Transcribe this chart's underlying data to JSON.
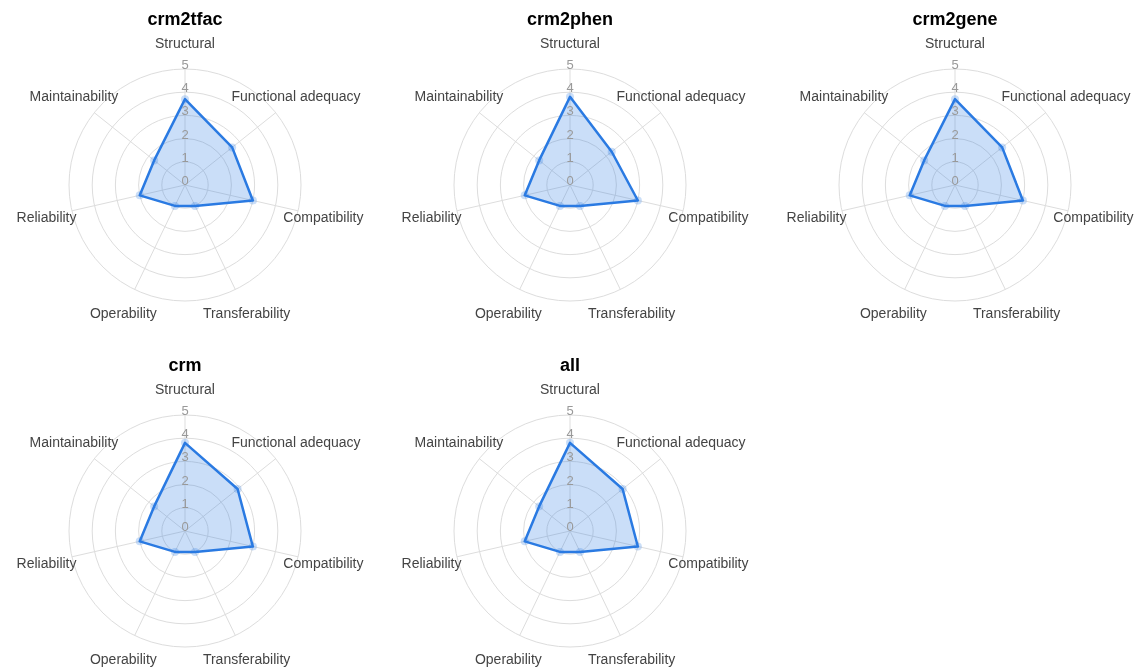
{
  "chart_data": [
    {
      "type": "radar",
      "title": "crm2tfac",
      "categories": [
        "Structural",
        "Functional adequacy",
        "Compatibility",
        "Transferability",
        "Operability",
        "Reliability",
        "Maintainability"
      ],
      "series": [
        {
          "color": "#2a7ae2",
          "values": [
            3.7,
            2.6,
            3.0,
            1.0,
            1.0,
            2.0,
            1.7
          ]
        }
      ],
      "ylim": [
        0,
        5
      ],
      "yticks": [
        0,
        1,
        2,
        3,
        4,
        5
      ],
      "grid": true,
      "marker": "circle",
      "legend": false
    },
    {
      "type": "radar",
      "title": "crm2phen",
      "categories": [
        "Structural",
        "Functional adequacy",
        "Compatibility",
        "Transferability",
        "Operability",
        "Reliability",
        "Maintainability"
      ],
      "series": [
        {
          "color": "#2a7ae2",
          "values": [
            3.8,
            2.3,
            3.0,
            1.0,
            1.0,
            2.0,
            1.7
          ]
        }
      ],
      "ylim": [
        0,
        5
      ],
      "yticks": [
        0,
        1,
        2,
        3,
        4,
        5
      ],
      "grid": true,
      "marker": "circle",
      "legend": false
    },
    {
      "type": "radar",
      "title": "crm2gene",
      "categories": [
        "Structural",
        "Functional adequacy",
        "Compatibility",
        "Transferability",
        "Operability",
        "Reliability",
        "Maintainability"
      ],
      "series": [
        {
          "color": "#2a7ae2",
          "values": [
            3.7,
            2.6,
            3.0,
            1.0,
            1.0,
            2.0,
            1.7
          ]
        }
      ],
      "ylim": [
        0,
        5
      ],
      "yticks": [
        0,
        1,
        2,
        3,
        4,
        5
      ],
      "grid": true,
      "marker": "circle",
      "legend": false
    },
    {
      "type": "radar",
      "title": "crm",
      "categories": [
        "Structural",
        "Functional adequacy",
        "Compatibility",
        "Transferability",
        "Operability",
        "Reliability",
        "Maintainability"
      ],
      "series": [
        {
          "color": "#2a7ae2",
          "values": [
            3.8,
            2.9,
            3.0,
            1.0,
            1.0,
            2.0,
            1.7
          ]
        }
      ],
      "ylim": [
        0,
        5
      ],
      "yticks": [
        0,
        1,
        2,
        3,
        4,
        5
      ],
      "grid": true,
      "marker": "circle",
      "legend": false
    },
    {
      "type": "radar",
      "title": "all",
      "categories": [
        "Structural",
        "Functional adequacy",
        "Compatibility",
        "Transferability",
        "Operability",
        "Reliability",
        "Maintainability"
      ],
      "series": [
        {
          "color": "#2a7ae2",
          "values": [
            3.8,
            2.9,
            3.0,
            1.0,
            1.0,
            2.0,
            1.7
          ]
        }
      ],
      "ylim": [
        0,
        5
      ],
      "yticks": [
        0,
        1,
        2,
        3,
        4,
        5
      ],
      "grid": true,
      "marker": "circle",
      "legend": false
    }
  ]
}
